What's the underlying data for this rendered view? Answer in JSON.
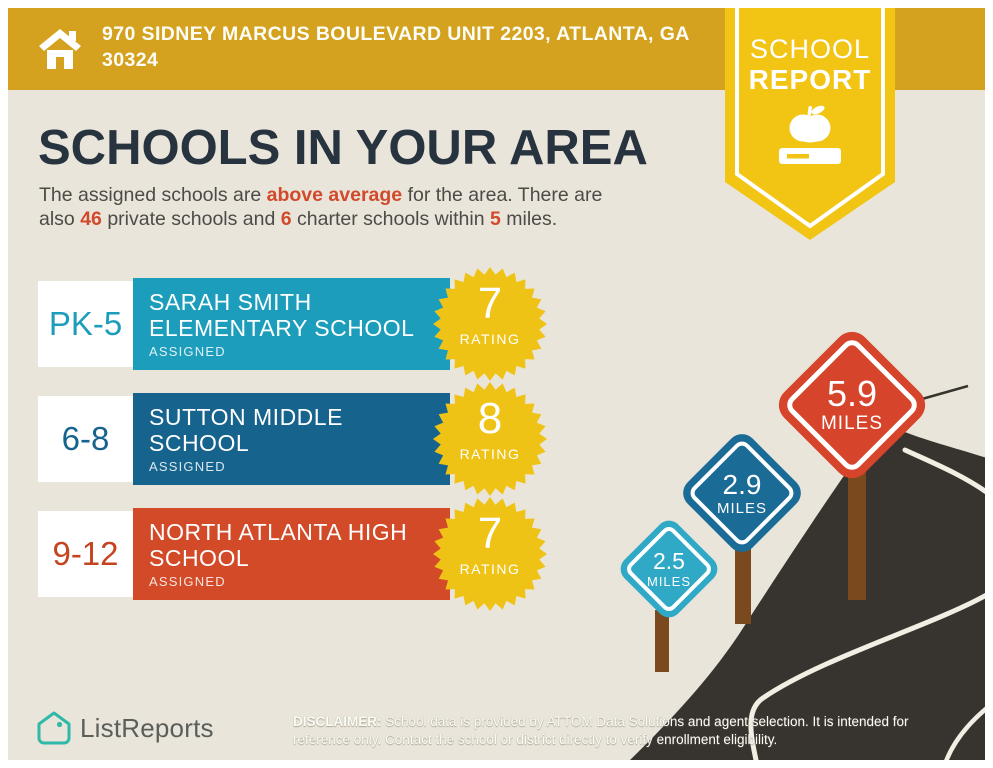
{
  "colors": {
    "gold": "#D4A21F",
    "yellow": "#F2C413",
    "bg": "#EAE5DA",
    "ink": "#27333F",
    "text": "#4C4B47",
    "accent": "#D14A2B",
    "teal": "#1D9DBC",
    "teal-light": "#2FA9C6",
    "blue": "#16638E",
    "blue-sign": "#1A6B96",
    "orange": "#D24A28",
    "orange-sign": "#D6442B",
    "orange-text": "#C5431F",
    "star": "#EFC315",
    "road": "#37332E",
    "road-line": "#F2EEE4",
    "post": "#7A4A1E",
    "brand-teal": "#2FB9A9",
    "brand-text": "#5B5F5A"
  },
  "header": {
    "address": "970 SIDNEY MARCUS BOULEVARD UNIT 2203, ATLANTA, GA 30324"
  },
  "badge": {
    "line1": "SCHOOL",
    "line2": "REPORT"
  },
  "main": {
    "title": "SCHOOLS IN YOUR AREA",
    "subtitle_parts": [
      {
        "text": "The assigned schools are ",
        "accent": false
      },
      {
        "text": "above average",
        "accent": true
      },
      {
        "text": " for the area. There are also ",
        "accent": false
      },
      {
        "text": "46",
        "accent": true
      },
      {
        "text": " private schools and ",
        "accent": false
      },
      {
        "text": "6",
        "accent": true
      },
      {
        "text": " charter schools within ",
        "accent": false
      },
      {
        "text": "5",
        "accent": true
      },
      {
        "text": " miles.",
        "accent": false
      }
    ]
  },
  "schools": [
    {
      "grades": "PK-5",
      "name": "SARAH SMITH ELEMENTARY SCHOOL",
      "status": "ASSIGNED",
      "rating": "7",
      "rating_label": "RATING"
    },
    {
      "grades": "6-8",
      "name": "SUTTON MIDDLE SCHOOL",
      "status": "ASSIGNED",
      "rating": "8",
      "rating_label": "RATING"
    },
    {
      "grades": "9-12",
      "name": "NORTH ATLANTA HIGH SCHOOL",
      "status": "ASSIGNED",
      "rating": "7",
      "rating_label": "RATING"
    }
  ],
  "signs": [
    {
      "distance": "2.5",
      "unit": "MILES"
    },
    {
      "distance": "2.9",
      "unit": "MILES"
    },
    {
      "distance": "5.9",
      "unit": "MILES"
    }
  ],
  "footer": {
    "brand": "ListReports",
    "disclaimer_label": "DISCLAIMER:",
    "disclaimer_text": " School data is provided by ATTOM Data Solutions and agent selection. It is intended for reference only. Contact the school or district directly to verify enrollment eligibility."
  }
}
